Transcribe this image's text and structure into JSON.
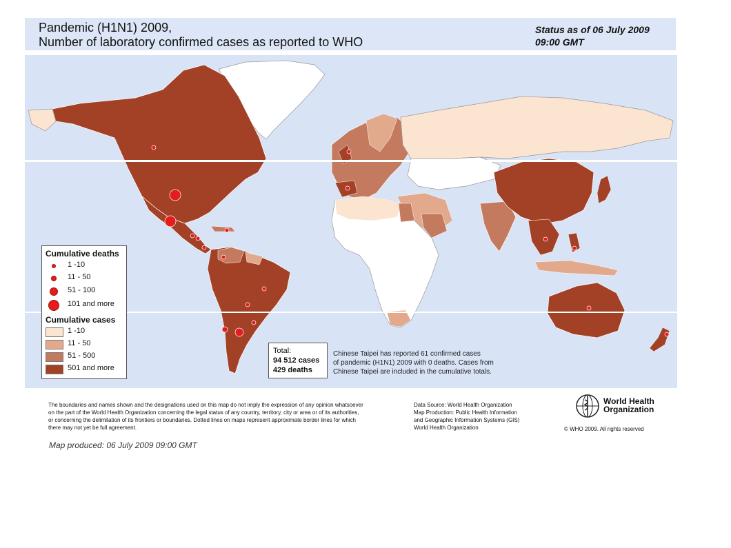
{
  "header": {
    "title_line1": "Pandemic (H1N1) 2009,",
    "title_line2": "Number of  laboratory confirmed cases as reported to WHO",
    "status_line1": "Status as of 06 July 2009",
    "status_line2": "09:00 GMT"
  },
  "colors": {
    "ocean": "#d9e3f6",
    "no_cases": "#ffffff",
    "cases_1_10": "#fbe4d0",
    "cases_11_50": "#e2a98d",
    "cases_51_500": "#c47a5f",
    "cases_501_more": "#a34126",
    "death_dot": "#e41c1c"
  },
  "legend": {
    "deaths_title": "Cumulative deaths",
    "deaths": [
      "1 -10",
      "11 - 50",
      "51 - 100",
      "101 and more"
    ],
    "cases_title": "Cumulative cases",
    "cases": [
      "1 -10",
      "11 - 50",
      "51 - 500",
      "501 and more"
    ]
  },
  "total": {
    "label": "Total:",
    "cases": "94 512 cases",
    "deaths": "429 deaths"
  },
  "taipei_note": [
    "Chinese Taipei has reported 61 confirmed cases",
    "of pandemic (H1N1) 2009 with 0 deaths. Cases from",
    "Chinese Taipei are included in the cumulative totals."
  ],
  "disclaimer": [
    "The boundaries and names shown and the designations used on this map do not imply the expression of any opinion whatsoever",
    "on the part of the World Health Organization concerning the legal status of any country, territory, city or area or of its authorities,",
    "or concerning the delimitation of its frontiers or boundaries.  Dotted lines on maps represent approximate border lines for which",
    "there may not yet be full agreement."
  ],
  "source": [
    "Data Source: World Health Organization",
    "Map Production: Public Health Information",
    "and Geographic Information Systems (GIS)",
    "World Health Organization"
  ],
  "who": {
    "line1": "World Health",
    "line2": "Organization",
    "copyright": "© WHO 2009. All rights reserved"
  },
  "produced": "Map produced: 06 July 2009 09:00 GMT"
}
